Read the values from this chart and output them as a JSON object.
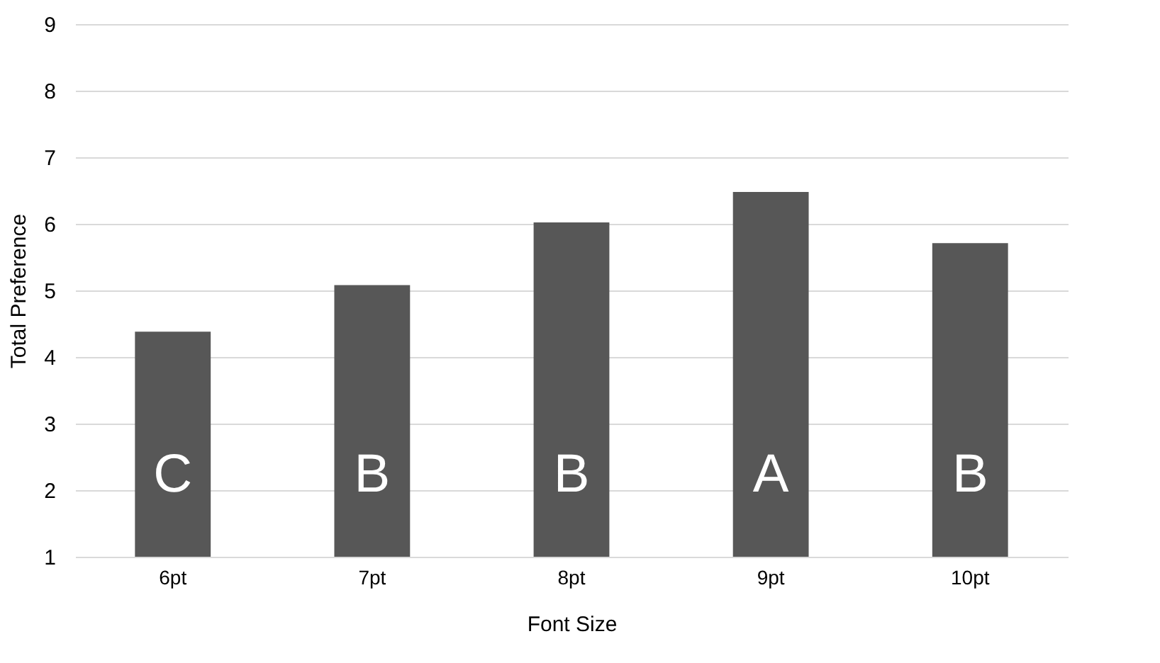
{
  "chart_data": {
    "type": "bar",
    "xlabel": "Font Size",
    "ylabel": "Total Preference",
    "categories": [
      "6pt",
      "7pt",
      "8pt",
      "9pt",
      "10pt"
    ],
    "values": [
      4.38,
      5.08,
      6.02,
      6.48,
      5.71
    ],
    "color": "#575757",
    "ylim": [
      1,
      9
    ],
    "yticks": [
      1,
      2,
      3,
      4,
      5,
      6,
      7,
      8,
      9
    ],
    "grid": "y",
    "value_labels": [
      "C",
      "B",
      "B",
      "A",
      "B"
    ]
  }
}
